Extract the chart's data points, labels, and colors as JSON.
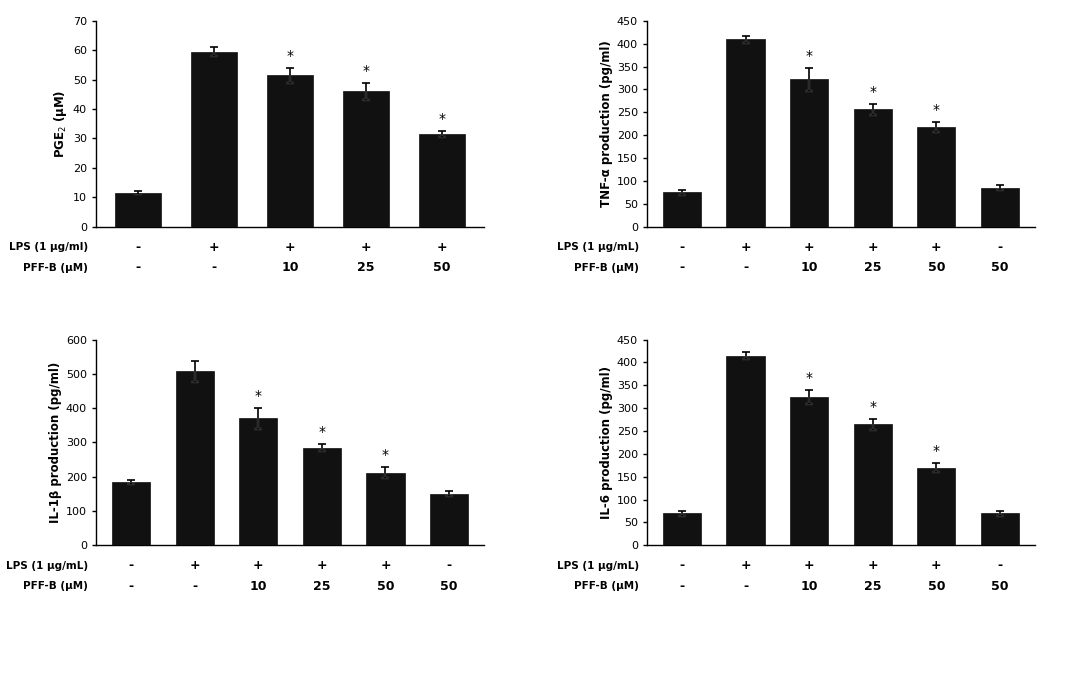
{
  "panels": [
    {
      "id": "PGE2",
      "ylabel": "PGE$_2$ (μM)",
      "ylim": [
        0,
        70
      ],
      "yticks": [
        0,
        10,
        20,
        30,
        40,
        50,
        60,
        70
      ],
      "values": [
        11.5,
        59.5,
        51.5,
        46.0,
        31.5
      ],
      "errors": [
        0.5,
        1.5,
        2.5,
        3.0,
        1.0
      ],
      "sig": [
        false,
        false,
        true,
        true,
        true
      ],
      "lps_row": [
        "-",
        "+",
        "+",
        "+",
        "+"
      ],
      "pffb_row": [
        "-",
        "-",
        "10",
        "25",
        "50"
      ],
      "lps_label": "LPS (1 μg/ml)",
      "pffb_label": "PFF-B (μM)",
      "n_bars": 5
    },
    {
      "id": "TNFa",
      "ylabel": "TNF-α production (pg/ml)",
      "ylim": [
        0,
        450
      ],
      "yticks": [
        0,
        50,
        100,
        150,
        200,
        250,
        300,
        350,
        400,
        450
      ],
      "values": [
        75,
        410,
        322,
        257,
        218,
        85
      ],
      "errors": [
        5,
        8,
        25,
        12,
        10,
        5
      ],
      "sig": [
        false,
        false,
        true,
        true,
        true,
        false
      ],
      "lps_row": [
        "-",
        "+",
        "+",
        "+",
        "+",
        "-"
      ],
      "pffb_row": [
        "-",
        "-",
        "10",
        "25",
        "50",
        "50"
      ],
      "lps_label": "LPS (1 μg/mL)",
      "pffb_label": "PFF-B (μM)",
      "n_bars": 6
    },
    {
      "id": "IL1b",
      "ylabel": "IL-1β production (pg/ml)",
      "ylim": [
        0,
        600
      ],
      "yticks": [
        0,
        100,
        200,
        300,
        400,
        500,
        600
      ],
      "values": [
        185,
        507,
        370,
        285,
        212,
        150
      ],
      "errors": [
        5,
        30,
        30,
        10,
        15,
        7
      ],
      "sig": [
        false,
        false,
        true,
        true,
        true,
        false
      ],
      "lps_row": [
        "-",
        "+",
        "+",
        "+",
        "+",
        "-"
      ],
      "pffb_row": [
        "-",
        "-",
        "10",
        "25",
        "50",
        "50"
      ],
      "lps_label": "LPS (1 μg/mL)",
      "pffb_label": "PFF-B (μM)",
      "n_bars": 6
    },
    {
      "id": "IL6",
      "ylabel": "IL-6 production (pg/ml)",
      "ylim": [
        0,
        450
      ],
      "yticks": [
        0,
        50,
        100,
        150,
        200,
        250,
        300,
        350,
        400,
        450
      ],
      "values": [
        70,
        415,
        325,
        265,
        170,
        70
      ],
      "errors": [
        5,
        8,
        15,
        12,
        10,
        5
      ],
      "sig": [
        false,
        false,
        true,
        true,
        true,
        false
      ],
      "lps_row": [
        "-",
        "+",
        "+",
        "+",
        "+",
        "-"
      ],
      "pffb_row": [
        "-",
        "-",
        "10",
        "25",
        "50",
        "50"
      ],
      "lps_label": "LPS (1 μg/mL)",
      "pffb_label": "PFF-B (μM)",
      "n_bars": 6
    }
  ],
  "bar_color": "#111111",
  "bar_width": 0.6,
  "capsize": 3,
  "error_color": "black",
  "sig_marker": "*",
  "background_color": "#ffffff",
  "fig_width": 10.67,
  "fig_height": 6.99,
  "dpi": 100
}
